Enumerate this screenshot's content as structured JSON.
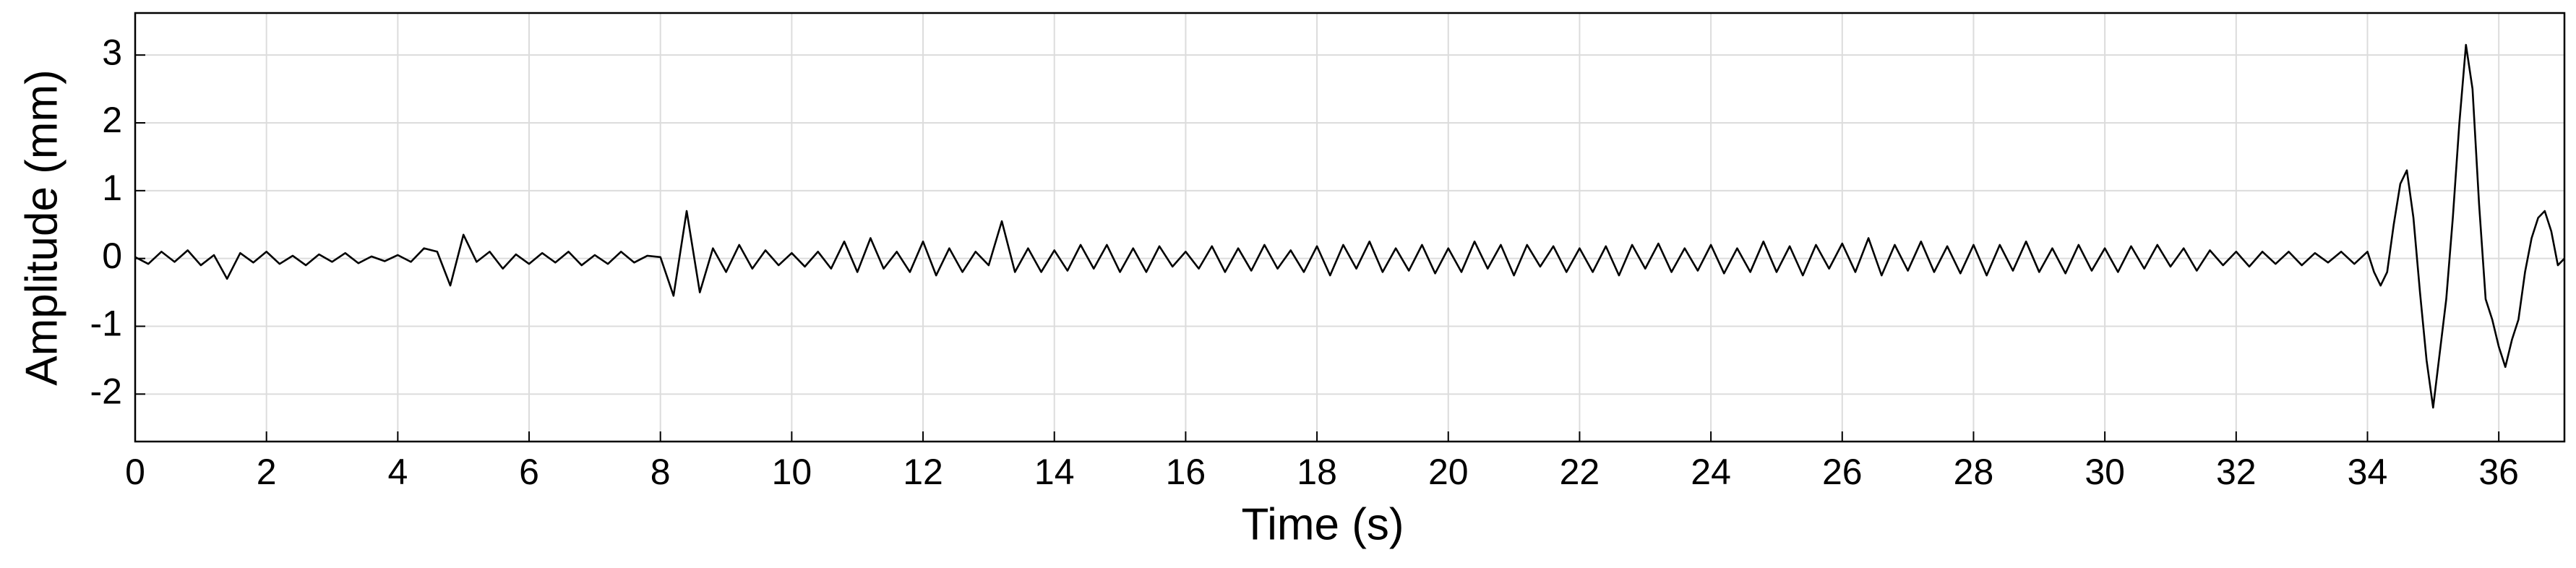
{
  "chart_data": {
    "type": "line",
    "x_label": "Time (s)",
    "y_label": "Amplitude (mm)",
    "xlim": [
      0,
      37
    ],
    "ylim": [
      -2.7,
      3.62
    ],
    "xticks": [
      0,
      2,
      4,
      6,
      8,
      10,
      12,
      14,
      16,
      18,
      20,
      22,
      24,
      26,
      28,
      30,
      32,
      34,
      36
    ],
    "yticks": [
      -2,
      -1,
      0,
      1,
      2,
      3
    ],
    "grid": true,
    "series": [
      {
        "color": "#000000",
        "x": [
          0,
          0.2,
          0.4,
          0.6,
          0.8,
          1,
          1.2,
          1.4,
          1.6,
          1.8,
          2,
          2.2,
          2.4,
          2.6,
          2.8,
          3,
          3.2,
          3.4,
          3.6,
          3.8,
          4,
          4.2,
          4.4,
          4.6,
          4.8,
          5,
          5.2,
          5.4,
          5.6,
          5.8,
          6,
          6.2,
          6.4,
          6.6,
          6.8,
          7,
          7.2,
          7.4,
          7.6,
          7.8,
          8,
          8.2,
          8.4,
          8.6,
          8.8,
          9,
          9.2,
          9.4,
          9.6,
          9.8,
          10,
          10.2,
          10.4,
          10.6,
          10.8,
          11,
          11.2,
          11.4,
          11.6,
          11.8,
          12,
          12.2,
          12.4,
          12.6,
          12.8,
          13,
          13.2,
          13.4,
          13.6,
          13.8,
          14,
          14.2,
          14.4,
          14.6,
          14.8,
          15,
          15.2,
          15.4,
          15.6,
          15.8,
          16,
          16.2,
          16.4,
          16.6,
          16.8,
          17,
          17.2,
          17.4,
          17.6,
          17.8,
          18,
          18.2,
          18.4,
          18.6,
          18.8,
          19,
          19.2,
          19.4,
          19.6,
          19.8,
          20,
          20.2,
          20.4,
          20.6,
          20.8,
          21,
          21.2,
          21.4,
          21.6,
          21.8,
          22,
          22.2,
          22.4,
          22.6,
          22.8,
          23,
          23.2,
          23.4,
          23.6,
          23.8,
          24,
          24.2,
          24.4,
          24.6,
          24.8,
          25,
          25.2,
          25.4,
          25.6,
          25.8,
          26,
          26.2,
          26.4,
          26.6,
          26.8,
          27,
          27.2,
          27.4,
          27.6,
          27.8,
          28,
          28.2,
          28.4,
          28.6,
          28.8,
          29,
          29.2,
          29.4,
          29.6,
          29.8,
          30,
          30.2,
          30.4,
          30.6,
          30.8,
          31,
          31.2,
          31.4,
          31.6,
          31.8,
          32,
          32.2,
          32.4,
          32.6,
          32.8,
          33,
          33.2,
          33.4,
          33.6,
          33.8,
          34,
          34.1,
          34.2,
          34.3,
          34.4,
          34.5,
          34.6,
          34.7,
          34.8,
          34.9,
          35,
          35.1,
          35.2,
          35.3,
          35.4,
          35.5,
          35.6,
          35.7,
          35.8,
          35.9,
          36,
          36.1,
          36.2,
          36.3,
          36.4,
          36.5,
          36.6,
          36.7,
          36.8,
          36.9,
          37
        ],
        "values": [
          0.02,
          -0.08,
          0.1,
          -0.05,
          0.12,
          -0.1,
          0.05,
          -0.3,
          0.08,
          -0.06,
          0.1,
          -0.08,
          0.04,
          -0.1,
          0.06,
          -0.05,
          0.08,
          -0.07,
          0.03,
          -0.04,
          0.05,
          -0.05,
          0.15,
          0.1,
          -0.4,
          0.35,
          -0.05,
          0.1,
          -0.15,
          0.06,
          -0.08,
          0.08,
          -0.06,
          0.1,
          -0.1,
          0.05,
          -0.08,
          0.1,
          -0.06,
          0.04,
          0.02,
          -0.55,
          0.7,
          -0.5,
          0.15,
          -0.2,
          0.2,
          -0.15,
          0.12,
          -0.1,
          0.08,
          -0.12,
          0.1,
          -0.15,
          0.25,
          -0.2,
          0.3,
          -0.15,
          0.1,
          -0.2,
          0.25,
          -0.25,
          0.15,
          -0.2,
          0.1,
          -0.1,
          0.55,
          -0.2,
          0.15,
          -0.2,
          0.12,
          -0.18,
          0.2,
          -0.15,
          0.2,
          -0.2,
          0.15,
          -0.2,
          0.18,
          -0.12,
          0.1,
          -0.15,
          0.18,
          -0.2,
          0.15,
          -0.18,
          0.2,
          -0.15,
          0.12,
          -0.2,
          0.18,
          -0.25,
          0.2,
          -0.15,
          0.25,
          -0.2,
          0.15,
          -0.18,
          0.2,
          -0.22,
          0.15,
          -0.2,
          0.25,
          -0.15,
          0.2,
          -0.25,
          0.2,
          -0.12,
          0.18,
          -0.2,
          0.15,
          -0.2,
          0.18,
          -0.25,
          0.2,
          -0.15,
          0.22,
          -0.2,
          0.15,
          -0.18,
          0.2,
          -0.22,
          0.15,
          -0.2,
          0.25,
          -0.2,
          0.18,
          -0.25,
          0.2,
          -0.15,
          0.22,
          -0.2,
          0.3,
          -0.25,
          0.2,
          -0.18,
          0.25,
          -0.2,
          0.18,
          -0.22,
          0.2,
          -0.25,
          0.2,
          -0.18,
          0.25,
          -0.2,
          0.15,
          -0.22,
          0.2,
          -0.18,
          0.15,
          -0.2,
          0.18,
          -0.15,
          0.2,
          -0.12,
          0.15,
          -0.18,
          0.12,
          -0.1,
          0.1,
          -0.12,
          0.1,
          -0.08,
          0.1,
          -0.1,
          0.08,
          -0.06,
          0.1,
          -0.08,
          0.1,
          -0.2,
          -0.4,
          -0.2,
          0.5,
          1.1,
          1.3,
          0.6,
          -0.5,
          -1.5,
          -2.2,
          -1.4,
          -0.6,
          0.6,
          2.0,
          3.15,
          2.5,
          0.8,
          -0.6,
          -0.9,
          -1.3,
          -1.6,
          -1.2,
          -0.9,
          -0.2,
          0.3,
          0.6,
          0.7,
          0.4,
          -0.1,
          0.0
        ]
      }
    ]
  }
}
